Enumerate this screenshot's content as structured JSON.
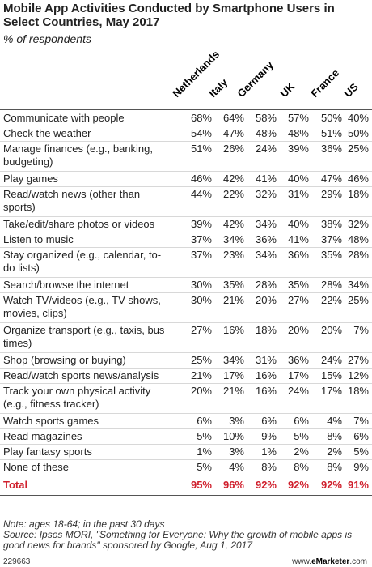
{
  "title": "Mobile App Activities Conducted by Smartphone Users in Select Countries, May 2017",
  "subtitle": "% of respondents",
  "chart_data": {
    "type": "table",
    "columns": [
      "Netherlands",
      "Italy",
      "Germany",
      "UK",
      "France",
      "US"
    ],
    "rows": [
      {
        "label": "Communicate with people",
        "values": [
          "68%",
          "64%",
          "58%",
          "57%",
          "50%",
          "40%"
        ]
      },
      {
        "label": "Check the weather",
        "values": [
          "54%",
          "47%",
          "48%",
          "48%",
          "51%",
          "50%"
        ]
      },
      {
        "label": "Manage finances (e.g., banking, budgeting)",
        "values": [
          "51%",
          "26%",
          "24%",
          "39%",
          "36%",
          "25%"
        ]
      },
      {
        "label": "Play games",
        "values": [
          "46%",
          "42%",
          "41%",
          "40%",
          "47%",
          "46%"
        ]
      },
      {
        "label": "Read/watch news (other than sports)",
        "values": [
          "44%",
          "22%",
          "32%",
          "31%",
          "29%",
          "18%"
        ]
      },
      {
        "label": "Take/edit/share photos or videos",
        "values": [
          "39%",
          "42%",
          "34%",
          "40%",
          "38%",
          "32%"
        ]
      },
      {
        "label": "Listen to music",
        "values": [
          "37%",
          "34%",
          "36%",
          "41%",
          "37%",
          "48%"
        ]
      },
      {
        "label": "Stay organized (e.g., calendar, to-do lists)",
        "values": [
          "37%",
          "23%",
          "34%",
          "36%",
          "35%",
          "28%"
        ]
      },
      {
        "label": "Search/browse the internet",
        "values": [
          "30%",
          "35%",
          "28%",
          "35%",
          "28%",
          "34%"
        ]
      },
      {
        "label": "Watch TV/videos (e.g., TV shows, movies, clips)",
        "values": [
          "30%",
          "21%",
          "20%",
          "27%",
          "22%",
          "25%"
        ]
      },
      {
        "label": "Organize transport (e.g., taxis, bus times)",
        "values": [
          "27%",
          "16%",
          "18%",
          "20%",
          "20%",
          "7%"
        ]
      },
      {
        "label": "Shop (browsing or buying)",
        "values": [
          "25%",
          "34%",
          "31%",
          "36%",
          "24%",
          "27%"
        ]
      },
      {
        "label": "Read/watch sports news/analysis",
        "values": [
          "21%",
          "17%",
          "16%",
          "17%",
          "15%",
          "12%"
        ]
      },
      {
        "label": "Track your own physical activity (e.g., fitness tracker)",
        "values": [
          "20%",
          "21%",
          "16%",
          "24%",
          "17%",
          "18%"
        ]
      },
      {
        "label": "Watch sports games",
        "values": [
          "6%",
          "3%",
          "6%",
          "6%",
          "4%",
          "7%"
        ]
      },
      {
        "label": "Read magazines",
        "values": [
          "5%",
          "10%",
          "9%",
          "5%",
          "8%",
          "6%"
        ]
      },
      {
        "label": "Play fantasy sports",
        "values": [
          "1%",
          "3%",
          "1%",
          "2%",
          "2%",
          "5%"
        ]
      },
      {
        "label": "None of these",
        "values": [
          "5%",
          "4%",
          "8%",
          "8%",
          "8%",
          "9%"
        ]
      }
    ],
    "total": {
      "label": "Total",
      "values": [
        "95%",
        "96%",
        "92%",
        "92%",
        "92%",
        "91%"
      ]
    },
    "total_color": "#d0202d"
  },
  "notes": {
    "note": "Note: ages 18-64; in the past 30 days",
    "source": "Source: Ipsos MORI, \"Something for Everyone: Why the growth of mobile apps is good news for brands\" sponsored by Google, Aug 1, 2017"
  },
  "footer": {
    "id": "229663",
    "brand_prefix": "www.",
    "brand_name": "eMarketer",
    "brand_suffix": ".com"
  }
}
